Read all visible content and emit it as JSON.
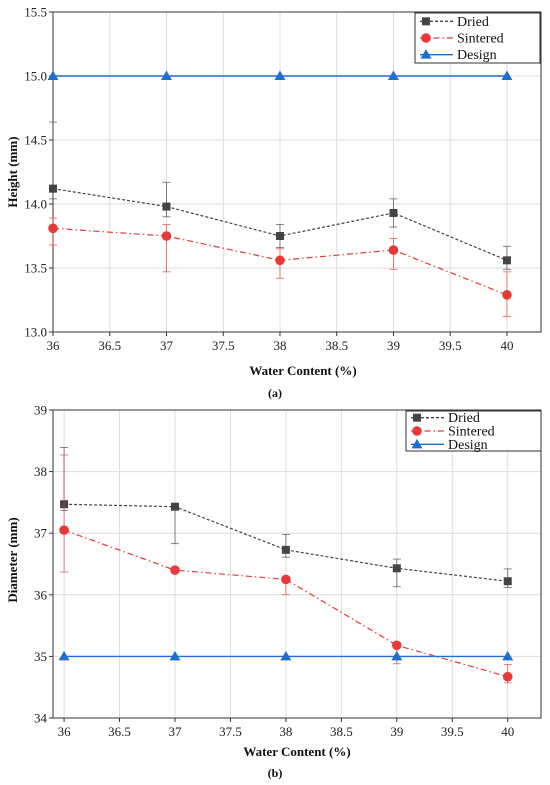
{
  "chart_data": [
    {
      "type": "line",
      "caption": "(a)",
      "xlabel": "Water Content (%)",
      "ylabel": "Height (mm)",
      "xlim": [
        36,
        40.3
      ],
      "ylim": [
        13.0,
        15.5
      ],
      "xticks": [
        "36",
        "36.5",
        "37",
        "37.5",
        "38",
        "38.5",
        "39",
        "39.5",
        "40"
      ],
      "yticks": [
        "13.0",
        "13.5",
        "14.0",
        "14.5",
        "15.0",
        "15.5"
      ],
      "grid": true,
      "legend": "top-right",
      "x": [
        36,
        37,
        38,
        39,
        40
      ],
      "series": [
        {
          "name": "Dried",
          "color": "#444444",
          "marker": "square",
          "dash": "dashed",
          "values": [
            14.12,
            13.98,
            13.75,
            13.93,
            13.56
          ],
          "err_plus": [
            0.52,
            0.19,
            0.09,
            0.11,
            0.11
          ],
          "err_minus": [
            0.08,
            0.08,
            0.09,
            0.11,
            0.07
          ]
        },
        {
          "name": "Sintered",
          "color": "#e8393a",
          "marker": "circle",
          "dash": "dashdot",
          "values": [
            13.81,
            13.75,
            13.56,
            13.64,
            13.29
          ],
          "err_plus": [
            0.08,
            0.09,
            0.09,
            0.09,
            0.18
          ],
          "err_minus": [
            0.13,
            0.28,
            0.14,
            0.15,
            0.17
          ]
        },
        {
          "name": "Design",
          "color": "#1f6fd0",
          "marker": "triangle",
          "dash": "solid",
          "values": [
            15.0,
            15.0,
            15.0,
            15.0,
            15.0
          ],
          "err_plus": [
            0,
            0,
            0,
            0,
            0
          ],
          "err_minus": [
            0,
            0,
            0,
            0,
            0
          ]
        }
      ]
    },
    {
      "type": "line",
      "caption": "(b)",
      "xlabel": "Water Content (%)",
      "ylabel": "Diameter (mm)",
      "xlim": [
        35.9,
        40.3
      ],
      "ylim": [
        34,
        39
      ],
      "xticks": [
        "36",
        "36.5",
        "37",
        "37.5",
        "38",
        "38.5",
        "39",
        "39.5",
        "40"
      ],
      "yticks": [
        "34",
        "35",
        "36",
        "37",
        "38",
        "39"
      ],
      "grid": true,
      "legend": "top-right",
      "x": [
        36,
        37,
        38,
        39,
        40
      ],
      "series": [
        {
          "name": "Dried",
          "color": "#444444",
          "marker": "square",
          "dash": "dashed",
          "values": [
            37.47,
            37.43,
            36.73,
            36.43,
            36.22
          ],
          "err_plus": [
            0.92,
            0.0,
            0.25,
            0.15,
            0.2
          ],
          "err_minus": [
            0.1,
            0.6,
            0.12,
            0.3,
            0.1
          ]
        },
        {
          "name": "Sintered",
          "color": "#e8393a",
          "marker": "circle",
          "dash": "dashdot",
          "values": [
            37.05,
            36.4,
            36.25,
            35.18,
            34.67
          ],
          "err_plus": [
            1.22,
            0.0,
            0.0,
            0.0,
            0.2
          ],
          "err_minus": [
            0.68,
            0.0,
            0.25,
            0.3,
            0.1
          ]
        },
        {
          "name": "Design",
          "color": "#1f6fd0",
          "marker": "triangle",
          "dash": "solid",
          "values": [
            35.0,
            35.0,
            35.0,
            35.0,
            35.0
          ],
          "err_plus": [
            0,
            0,
            0,
            0,
            0
          ],
          "err_minus": [
            0,
            0,
            0,
            0,
            0
          ]
        }
      ]
    }
  ]
}
